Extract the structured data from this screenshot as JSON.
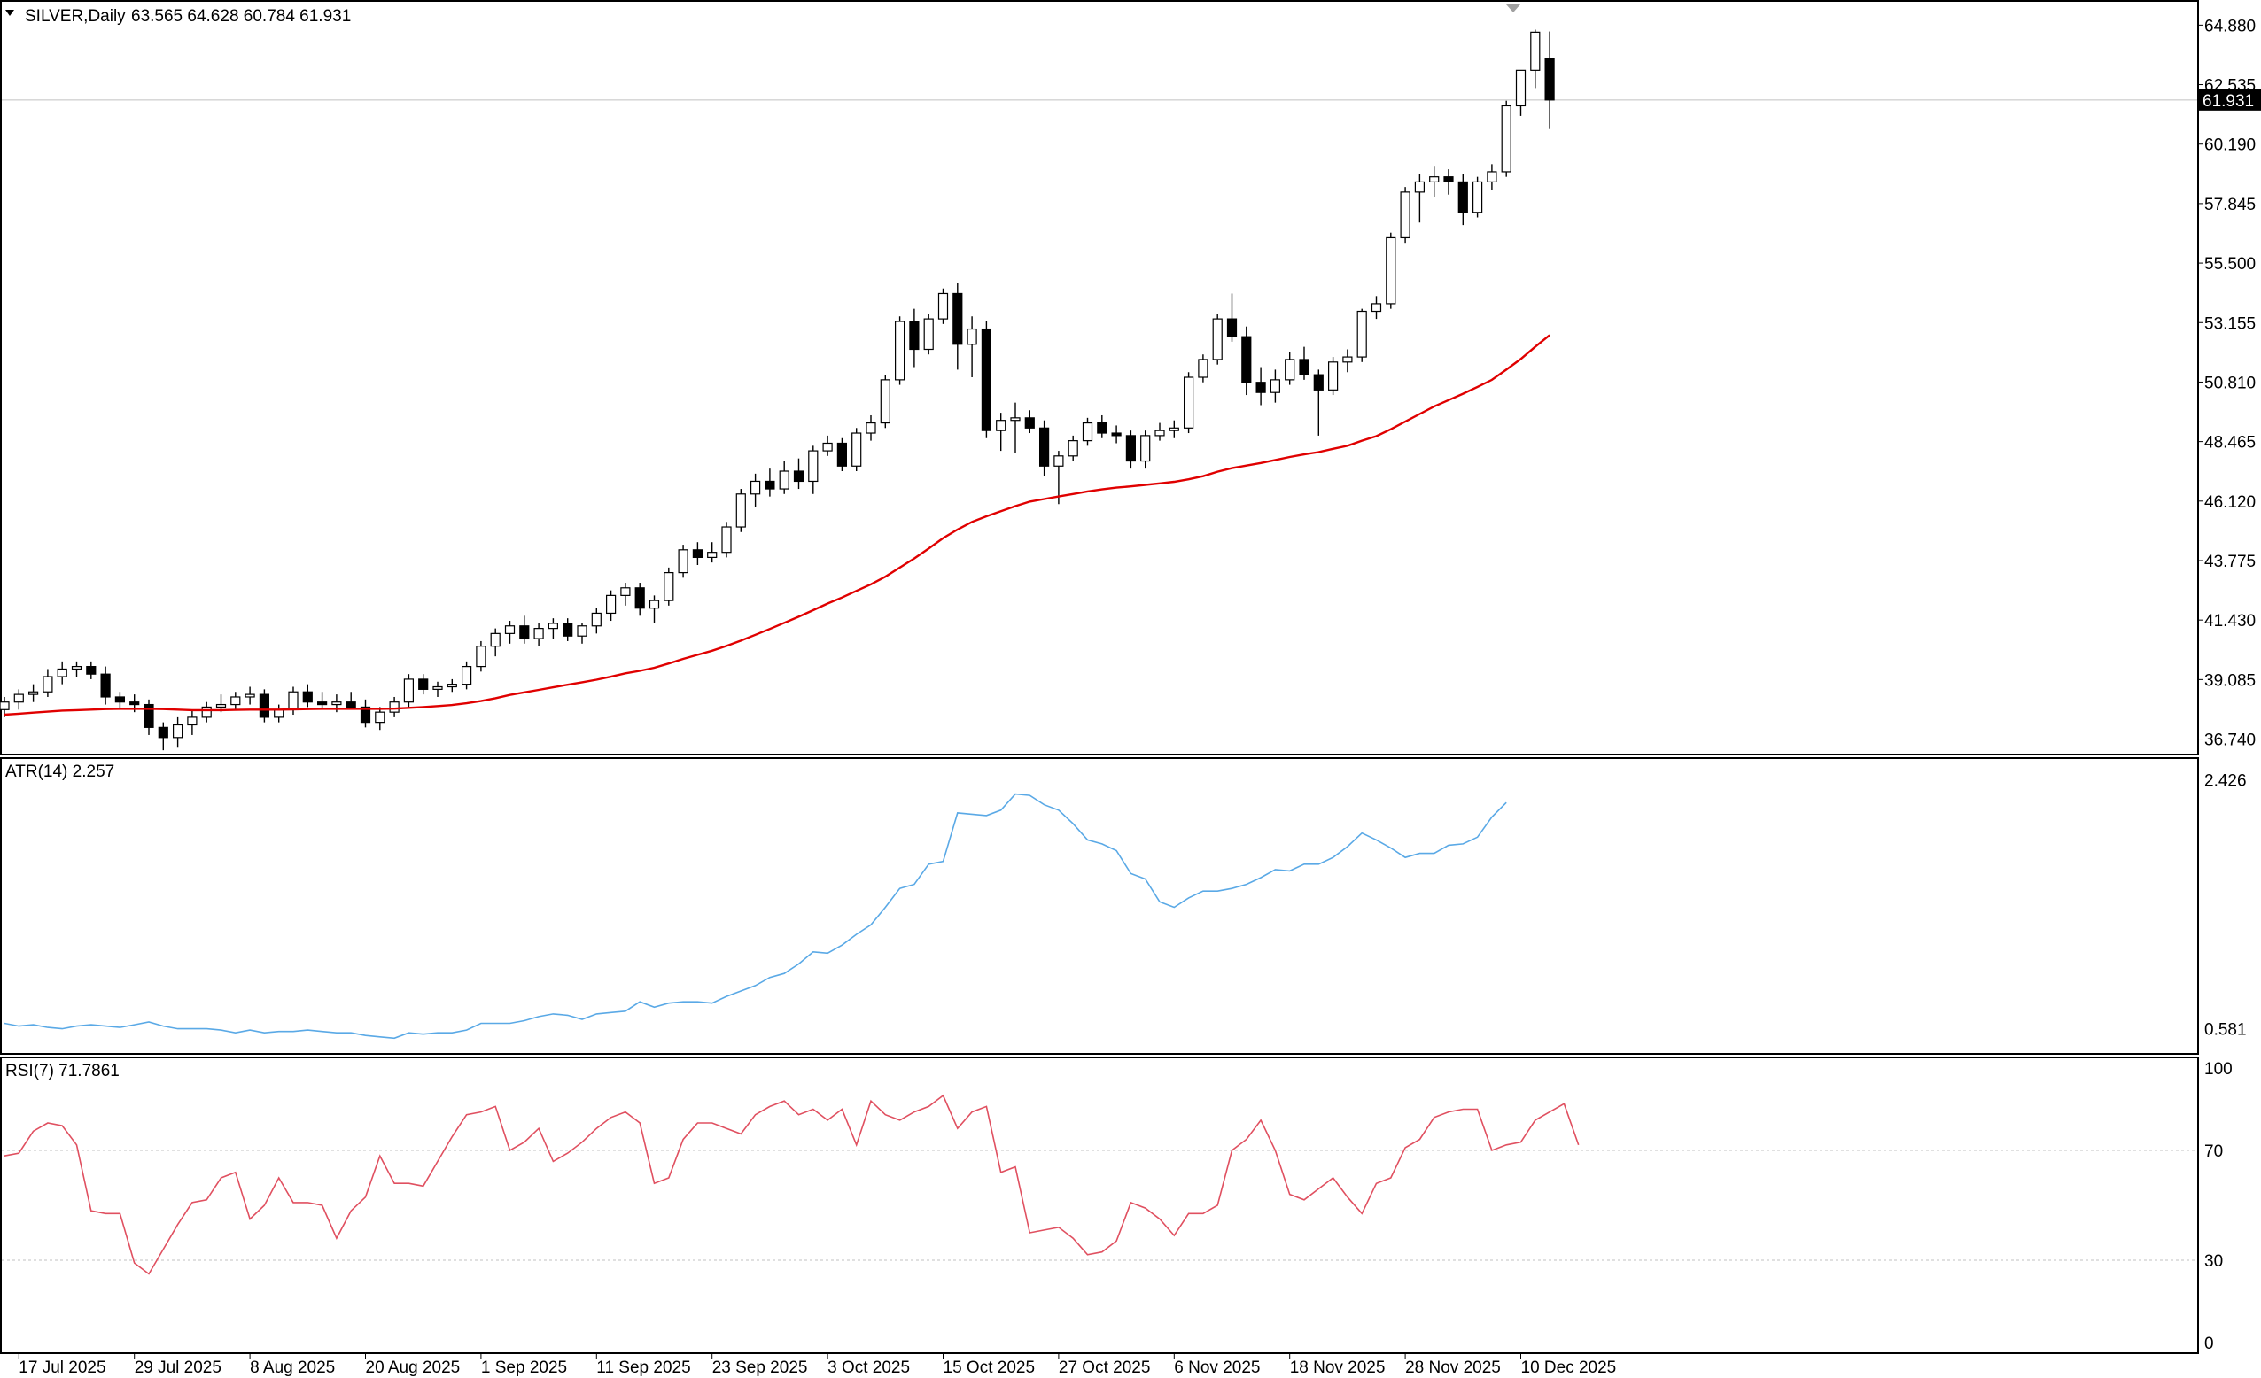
{
  "header": {
    "symbol_label": "SILVER,Daily",
    "ohlc_label": "63.565 64.628 60.784 61.931"
  },
  "colors": {
    "background": "#ffffff",
    "border": "#000000",
    "candle_up": "#ffffff",
    "candle_down": "#000000",
    "ma_line": "#e00000",
    "atr_line": "#5aa9e6",
    "rsi_line": "#e05060",
    "level_line": "#c0c0c0",
    "price_tag_bg": "#000000",
    "price_tag_text": "#ffffff"
  },
  "chart_data": [
    {
      "type": "candlestick",
      "panel": "main",
      "ylim": [
        36.2,
        65.8
      ],
      "y_ticks": [
        "64.880",
        "62.535",
        "60.190",
        "57.845",
        "55.500",
        "53.155",
        "50.810",
        "48.465",
        "46.120",
        "43.775",
        "41.430",
        "39.085",
        "36.740"
      ],
      "current_price_label": "61.931",
      "current_price": 61.931,
      "x_labels": [
        "17 Jul 2025",
        "29 Jul 2025",
        "8 Aug 2025",
        "20 Aug 2025",
        "1 Sep 2025",
        "11 Sep 2025",
        "23 Sep 2025",
        "3 Oct 2025",
        "15 Oct 2025",
        "27 Oct 2025",
        "6 Nov 2025",
        "18 Nov 2025",
        "28 Nov 2025",
        "10 Dec 2025"
      ],
      "x_label_index": [
        1,
        9,
        17,
        25,
        33,
        41,
        49,
        57,
        65,
        73,
        81,
        89,
        97,
        105
      ],
      "ohlc": [
        [
          37.9,
          38.4,
          37.6,
          38.2
        ],
        [
          38.2,
          38.7,
          37.9,
          38.5
        ],
        [
          38.5,
          38.9,
          38.2,
          38.6
        ],
        [
          38.6,
          39.5,
          38.4,
          39.2
        ],
        [
          39.2,
          39.8,
          38.9,
          39.5
        ],
        [
          39.5,
          39.8,
          39.2,
          39.6
        ],
        [
          39.6,
          39.8,
          39.1,
          39.3
        ],
        [
          39.3,
          39.6,
          38.1,
          38.4
        ],
        [
          38.4,
          38.6,
          37.9,
          38.2
        ],
        [
          38.2,
          38.5,
          37.8,
          38.1
        ],
        [
          38.1,
          38.3,
          36.9,
          37.2
        ],
        [
          37.2,
          37.4,
          36.3,
          36.8
        ],
        [
          36.8,
          37.6,
          36.4,
          37.3
        ],
        [
          37.3,
          37.9,
          36.9,
          37.6
        ],
        [
          37.6,
          38.2,
          37.4,
          38.0
        ],
        [
          38.0,
          38.5,
          37.8,
          38.1
        ],
        [
          38.1,
          38.6,
          37.9,
          38.4
        ],
        [
          38.4,
          38.8,
          38.1,
          38.5
        ],
        [
          38.5,
          38.7,
          37.4,
          37.6
        ],
        [
          37.6,
          38.1,
          37.4,
          37.9
        ],
        [
          37.9,
          38.8,
          37.7,
          38.6
        ],
        [
          38.6,
          38.9,
          38.0,
          38.2
        ],
        [
          38.2,
          38.6,
          37.9,
          38.1
        ],
        [
          38.1,
          38.5,
          37.8,
          38.2
        ],
        [
          38.2,
          38.6,
          37.9,
          38.0
        ],
        [
          38.0,
          38.3,
          37.2,
          37.4
        ],
        [
          37.4,
          38.0,
          37.1,
          37.8
        ],
        [
          37.8,
          38.4,
          37.6,
          38.2
        ],
        [
          38.2,
          39.3,
          38.0,
          39.1
        ],
        [
          39.1,
          39.3,
          38.5,
          38.7
        ],
        [
          38.7,
          39.0,
          38.4,
          38.8
        ],
        [
          38.8,
          39.1,
          38.6,
          38.9
        ],
        [
          38.9,
          39.8,
          38.7,
          39.6
        ],
        [
          39.6,
          40.6,
          39.4,
          40.4
        ],
        [
          40.4,
          41.1,
          40.0,
          40.9
        ],
        [
          40.9,
          41.4,
          40.5,
          41.2
        ],
        [
          41.2,
          41.6,
          40.5,
          40.7
        ],
        [
          40.7,
          41.3,
          40.4,
          41.1
        ],
        [
          41.1,
          41.5,
          40.7,
          41.3
        ],
        [
          41.3,
          41.5,
          40.6,
          40.8
        ],
        [
          40.8,
          41.3,
          40.5,
          41.2
        ],
        [
          41.2,
          41.9,
          40.9,
          41.7
        ],
        [
          41.7,
          42.6,
          41.4,
          42.4
        ],
        [
          42.4,
          42.9,
          42.0,
          42.7
        ],
        [
          42.7,
          42.9,
          41.6,
          41.9
        ],
        [
          41.9,
          42.4,
          41.3,
          42.2
        ],
        [
          42.2,
          43.5,
          42.0,
          43.3
        ],
        [
          43.3,
          44.4,
          43.1,
          44.2
        ],
        [
          44.2,
          44.5,
          43.6,
          43.9
        ],
        [
          43.9,
          44.5,
          43.7,
          44.1
        ],
        [
          44.1,
          45.3,
          43.9,
          45.1
        ],
        [
          45.1,
          46.6,
          44.9,
          46.4
        ],
        [
          46.4,
          47.2,
          45.9,
          46.9
        ],
        [
          46.9,
          47.4,
          46.3,
          46.6
        ],
        [
          46.6,
          47.7,
          46.4,
          47.3
        ],
        [
          47.3,
          47.8,
          46.6,
          46.9
        ],
        [
          46.9,
          48.3,
          46.4,
          48.1
        ],
        [
          48.1,
          48.7,
          47.9,
          48.4
        ],
        [
          48.4,
          48.6,
          47.3,
          47.5
        ],
        [
          47.5,
          49.0,
          47.3,
          48.8
        ],
        [
          48.8,
          49.5,
          48.5,
          49.2
        ],
        [
          49.2,
          51.1,
          49.0,
          50.9
        ],
        [
          50.9,
          53.4,
          50.7,
          53.2
        ],
        [
          53.2,
          53.7,
          51.4,
          52.1
        ],
        [
          52.1,
          53.5,
          51.9,
          53.3
        ],
        [
          53.3,
          54.5,
          53.1,
          54.3
        ],
        [
          54.3,
          54.7,
          51.3,
          52.3
        ],
        [
          52.3,
          53.4,
          51.0,
          52.9
        ],
        [
          52.9,
          53.2,
          48.6,
          48.9
        ],
        [
          48.9,
          49.6,
          48.1,
          49.3
        ],
        [
          49.3,
          50.0,
          48.0,
          49.4
        ],
        [
          49.4,
          49.7,
          48.8,
          49.0
        ],
        [
          49.0,
          49.3,
          47.1,
          47.5
        ],
        [
          47.5,
          48.1,
          46.0,
          47.9
        ],
        [
          47.9,
          48.7,
          47.7,
          48.5
        ],
        [
          48.5,
          49.4,
          48.3,
          49.2
        ],
        [
          49.2,
          49.5,
          48.6,
          48.8
        ],
        [
          48.8,
          49.1,
          48.4,
          48.7
        ],
        [
          48.7,
          48.9,
          47.4,
          47.7
        ],
        [
          47.7,
          48.9,
          47.4,
          48.7
        ],
        [
          48.7,
          49.2,
          48.5,
          48.9
        ],
        [
          48.9,
          49.3,
          48.6,
          49.0
        ],
        [
          49.0,
          51.2,
          48.8,
          51.0
        ],
        [
          51.0,
          51.9,
          50.8,
          51.7
        ],
        [
          51.7,
          53.5,
          51.5,
          53.3
        ],
        [
          53.3,
          54.3,
          52.4,
          52.6
        ],
        [
          52.6,
          53.0,
          50.3,
          50.8
        ],
        [
          50.8,
          51.4,
          49.9,
          50.4
        ],
        [
          50.4,
          51.3,
          50.0,
          50.9
        ],
        [
          50.9,
          52.0,
          50.7,
          51.7
        ],
        [
          51.7,
          52.2,
          50.9,
          51.1
        ],
        [
          51.1,
          51.3,
          48.7,
          50.5
        ],
        [
          50.5,
          51.8,
          50.3,
          51.6
        ],
        [
          51.6,
          52.1,
          51.2,
          51.8
        ],
        [
          51.8,
          53.7,
          51.6,
          53.6
        ],
        [
          53.6,
          54.2,
          53.3,
          53.9
        ],
        [
          53.9,
          56.7,
          53.7,
          56.5
        ],
        [
          56.5,
          58.5,
          56.3,
          58.3
        ],
        [
          58.3,
          59.0,
          57.1,
          58.7
        ],
        [
          58.7,
          59.3,
          58.1,
          58.9
        ],
        [
          58.9,
          59.2,
          58.2,
          58.7
        ],
        [
          58.7,
          59.0,
          57.0,
          57.5
        ],
        [
          57.5,
          58.9,
          57.3,
          58.7
        ],
        [
          58.7,
          59.4,
          58.4,
          59.1
        ],
        [
          59.1,
          61.9,
          58.9,
          61.7
        ],
        [
          61.7,
          63.1,
          61.3,
          63.1
        ],
        [
          63.1,
          64.7,
          62.4,
          64.6
        ],
        [
          63.565,
          64.628,
          60.784,
          61.931
        ]
      ],
      "ma": [
        37.7,
        37.74,
        37.78,
        37.82,
        37.86,
        37.88,
        37.9,
        37.92,
        37.93,
        37.93,
        37.93,
        37.92,
        37.9,
        37.88,
        37.88,
        37.88,
        37.89,
        37.9,
        37.9,
        37.9,
        37.91,
        37.92,
        37.93,
        37.93,
        37.93,
        37.93,
        37.93,
        37.94,
        37.97,
        38.0,
        38.04,
        38.08,
        38.15,
        38.24,
        38.35,
        38.48,
        38.58,
        38.68,
        38.78,
        38.88,
        38.98,
        39.08,
        39.2,
        39.33,
        39.43,
        39.55,
        39.72,
        39.9,
        40.06,
        40.22,
        40.41,
        40.62,
        40.85,
        41.08,
        41.32,
        41.56,
        41.82,
        42.08,
        42.32,
        42.58,
        42.84,
        43.14,
        43.5,
        43.86,
        44.25,
        44.66,
        45.0,
        45.3,
        45.52,
        45.72,
        45.92,
        46.1,
        46.2,
        46.3,
        46.4,
        46.5,
        46.58,
        46.65,
        46.7,
        46.76,
        46.82,
        46.88,
        46.98,
        47.1,
        47.28,
        47.42,
        47.52,
        47.62,
        47.74,
        47.86,
        47.96,
        48.05,
        48.18,
        48.3,
        48.5,
        48.68,
        48.95,
        49.25,
        49.55,
        49.85,
        50.1,
        50.35,
        50.62,
        50.9,
        51.3,
        51.72,
        52.2,
        52.66
      ]
    },
    {
      "type": "line",
      "panel": "atr",
      "label": "ATR(14) 2.257",
      "ylim": [
        0.42,
        2.56
      ],
      "y_ticks": [
        "2.426",
        "0.581"
      ],
      "values": [
        0.62,
        0.6,
        0.61,
        0.59,
        0.58,
        0.6,
        0.61,
        0.6,
        0.59,
        0.61,
        0.63,
        0.6,
        0.58,
        0.58,
        0.58,
        0.57,
        0.55,
        0.57,
        0.55,
        0.56,
        0.56,
        0.57,
        0.56,
        0.55,
        0.55,
        0.53,
        0.52,
        0.51,
        0.55,
        0.54,
        0.55,
        0.55,
        0.57,
        0.62,
        0.62,
        0.62,
        0.64,
        0.67,
        0.69,
        0.68,
        0.65,
        0.69,
        0.7,
        0.71,
        0.78,
        0.74,
        0.77,
        0.78,
        0.78,
        0.77,
        0.82,
        0.86,
        0.9,
        0.96,
        0.99,
        1.06,
        1.15,
        1.14,
        1.2,
        1.28,
        1.35,
        1.48,
        1.62,
        1.65,
        1.8,
        1.82,
        2.18,
        2.17,
        2.16,
        2.2,
        2.32,
        2.31,
        2.24,
        2.2,
        2.1,
        1.98,
        1.95,
        1.9,
        1.73,
        1.69,
        1.52,
        1.48,
        1.55,
        1.6,
        1.6,
        1.62,
        1.65,
        1.7,
        1.76,
        1.75,
        1.8,
        1.8,
        1.85,
        1.93,
        2.03,
        1.98,
        1.92,
        1.85,
        1.88,
        1.88,
        1.94,
        1.95,
        2.0,
        2.15,
        2.257
      ],
      "x_offset": 0
    },
    {
      "type": "line",
      "panel": "rsi",
      "label": "RSI(7) 71.7861",
      "ylim": [
        0,
        100
      ],
      "y_ticks": [
        "100",
        "70",
        "30",
        "0"
      ],
      "levels": [
        70,
        30
      ],
      "values": [
        68,
        69,
        77,
        80,
        79,
        72,
        48,
        47,
        47,
        29,
        25,
        34,
        43,
        51,
        52,
        60,
        62,
        45,
        50,
        60,
        51,
        51,
        50,
        38,
        48,
        53,
        68,
        58,
        58,
        57,
        66,
        75,
        83,
        84,
        86,
        70,
        73,
        78,
        66,
        69,
        73,
        78,
        82,
        84,
        80,
        58,
        60,
        74,
        80,
        80,
        78,
        76,
        83,
        86,
        88,
        83,
        85,
        81,
        85,
        72,
        88,
        83,
        81,
        84,
        86,
        90,
        78,
        84,
        86,
        62,
        64,
        40,
        41,
        42,
        38,
        32,
        33,
        37,
        51,
        49,
        45,
        39,
        47,
        47,
        50,
        70,
        74,
        81,
        70,
        54,
        52,
        56,
        60,
        53,
        47,
        58,
        60,
        71,
        74,
        82,
        84,
        85,
        85,
        70,
        72,
        73,
        81,
        84,
        87,
        72
      ]
    }
  ]
}
